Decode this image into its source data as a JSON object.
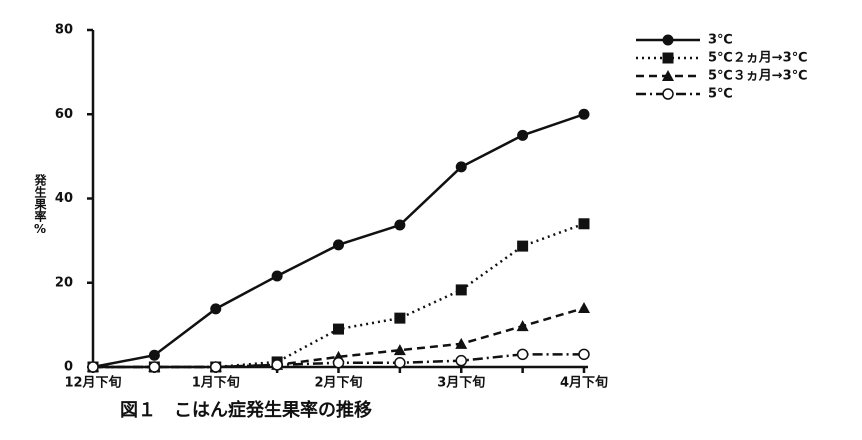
{
  "chart_data": {
    "type": "line",
    "caption": "図１　こはん症発生果率の推移",
    "y_label": "発生果率%",
    "categories": [
      "12月下旬",
      null,
      "1月下旬",
      null,
      "2月下旬",
      null,
      "3月下旬",
      null,
      "4月下旬"
    ],
    "series": [
      {
        "name": "3℃",
        "color": "#111111",
        "linestyle": "solid",
        "marker": "circle",
        "values": [
          0,
          2.8,
          13.8,
          21.6,
          29,
          33.7,
          47.5,
          55,
          60
        ]
      },
      {
        "name": "5℃２ヵ月→3℃",
        "color": "#111111",
        "linestyle": "dotted",
        "marker": "square",
        "values": [
          0,
          0,
          0,
          1.2,
          9,
          11.6,
          18.3,
          28.7,
          34
        ]
      },
      {
        "name": "5℃３ヵ月→3℃",
        "color": "#111111",
        "linestyle": "dashed",
        "marker": "triangle",
        "values": [
          0,
          0,
          0,
          0.5,
          2.4,
          4,
          5.5,
          9.7,
          14
        ]
      },
      {
        "name": "5℃",
        "color": "#111111",
        "linestyle": "dashdot",
        "marker": "open-circle",
        "values": [
          0,
          0,
          0,
          0.5,
          1,
          1,
          1.5,
          3,
          3
        ]
      }
    ],
    "ylim": [
      0,
      80
    ],
    "yticks": [
      0,
      20,
      40,
      60,
      80
    ],
    "legend": "upper right"
  }
}
